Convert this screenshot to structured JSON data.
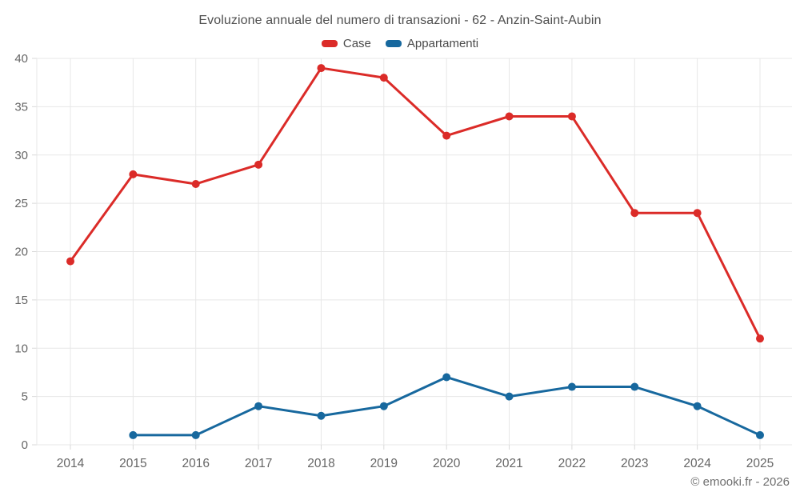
{
  "header": {
    "title": "Evoluzione annuale del numero di transazioni - 62 - Anzin-Saint-Aubin"
  },
  "footer": {
    "copyright": "© emooki.fr - 2026"
  },
  "chart_data": {
    "type": "line",
    "title": "Evoluzione annuale del numero di transazioni - 62 - Anzin-Saint-Aubin",
    "categories": [
      "2014",
      "2015",
      "2016",
      "2017",
      "2018",
      "2019",
      "2020",
      "2021",
      "2022",
      "2023",
      "2024",
      "2025"
    ],
    "series": [
      {
        "name": "Case",
        "color": "#db2b28",
        "values": [
          19,
          28,
          27,
          29,
          39,
          38,
          32,
          34,
          34,
          24,
          24,
          11
        ]
      },
      {
        "name": "Appartamenti",
        "color": "#17689e",
        "values": [
          null,
          1,
          1,
          4,
          3,
          4,
          7,
          5,
          6,
          6,
          4,
          1
        ]
      }
    ],
    "xlabel": "",
    "ylabel": "",
    "ylim": [
      0,
      40
    ],
    "ytick_step": 5,
    "grid": true,
    "legend_position": "top"
  },
  "colors": {
    "background": "#ffffff",
    "title_text": "#4f4f4f",
    "legend_text": "#4a4a4a",
    "axis_text": "#666666",
    "gridline": "#e7e7e7",
    "tick_mark": "#d9d9d9",
    "case_red": "#db2b28",
    "appartamenti_blue": "#17689e"
  }
}
